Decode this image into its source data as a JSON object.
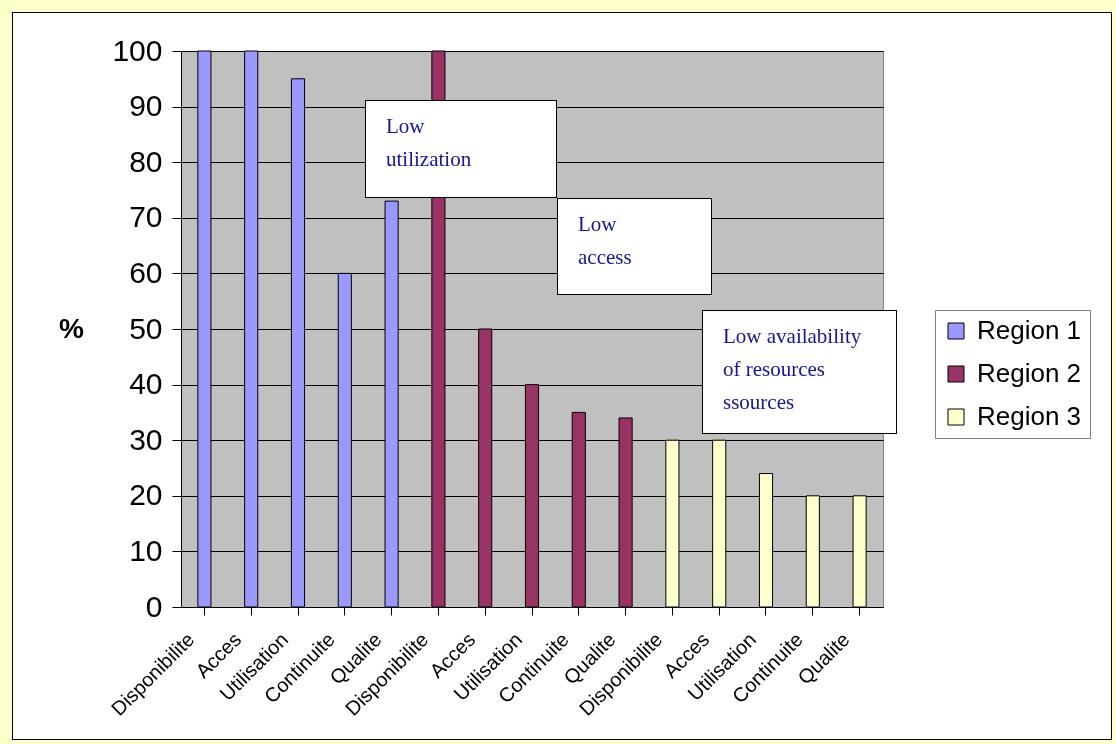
{
  "chart_data": {
    "type": "bar",
    "ylabel": "%",
    "categories": [
      "Disponibilite",
      "Acces",
      "Utilisation",
      "Continuite",
      "Qualite",
      "Disponibilite",
      "Acces",
      "Utilisation",
      "Continuite",
      "Qualite",
      "Disponibilite",
      "Acces",
      "Utilisation",
      "Continuite",
      "Qualite"
    ],
    "series": [
      {
        "name": "Region 1",
        "color": "#9999ff",
        "values": [
          100,
          100,
          95,
          60,
          73,
          null,
          null,
          null,
          null,
          null,
          null,
          null,
          null,
          null,
          null
        ]
      },
      {
        "name": "Region 2",
        "color": "#993366",
        "values": [
          null,
          null,
          null,
          null,
          null,
          100,
          50,
          40,
          35,
          34,
          null,
          null,
          null,
          null,
          null
        ]
      },
      {
        "name": "Region 3",
        "color": "#ffffcc",
        "values": [
          null,
          null,
          null,
          null,
          null,
          null,
          null,
          null,
          null,
          null,
          30,
          30,
          24,
          20,
          20
        ]
      }
    ],
    "ylim": [
      0,
      100
    ],
    "yticks": [
      0,
      10,
      20,
      30,
      40,
      50,
      60,
      70,
      80,
      90,
      100
    ],
    "grid": "y",
    "legend": "right",
    "annotations": [
      "Low utilization",
      "Low access",
      "Low availability of resources ssources"
    ]
  }
}
